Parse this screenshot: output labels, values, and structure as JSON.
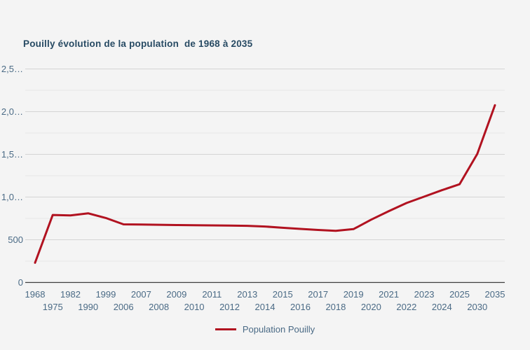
{
  "chart": {
    "title": "Pouilly évolution de la population  de 1968 à 2035",
    "legend": {
      "label": "Population Pouilly"
    }
  },
  "chart_data": {
    "type": "line",
    "title": "Pouilly évolution de la population  de 1968 à 2035",
    "categories": [
      "1968",
      "1975",
      "1982",
      "1990",
      "1999",
      "2006",
      "2007",
      "2008",
      "2009",
      "2010",
      "2011",
      "2012",
      "2013",
      "2014",
      "2015",
      "2016",
      "2017",
      "2018",
      "2019",
      "2020",
      "2021",
      "2022",
      "2023",
      "2024",
      "2025",
      "2030",
      "2035"
    ],
    "series": [
      {
        "name": "Population Pouilly",
        "values": [
          230,
          790,
          785,
          810,
          755,
          680,
          678,
          675,
          672,
          670,
          668,
          666,
          663,
          655,
          640,
          627,
          615,
          605,
          625,
          735,
          835,
          930,
          1005,
          1080,
          1150,
          1505,
          2075
        ]
      }
    ],
    "xlabel": "",
    "ylabel": "",
    "ylim": [
      0,
      2500
    ],
    "y_ticks": [
      {
        "value": 0,
        "label": "0"
      },
      {
        "value": 500,
        "label": "500"
      },
      {
        "value": 1000,
        "label": "1,0…"
      },
      {
        "value": 1500,
        "label": "1,5…"
      },
      {
        "value": 2000,
        "label": "2,0…"
      },
      {
        "value": 2500,
        "label": "2,5…"
      }
    ],
    "y_minor_ticks": [
      250,
      750,
      1250,
      1750,
      2250
    ],
    "grid": "horizontal-only",
    "legend_position": "bottom-center",
    "colors": {
      "line": "#b11220",
      "title": "#274a63",
      "tick_labels": "#4a6a85",
      "grid_major": "#d4d4d4",
      "grid_minor": "#e6e6e6",
      "axis_line": "#3d3d3d",
      "background": "#f4f4f4"
    }
  }
}
